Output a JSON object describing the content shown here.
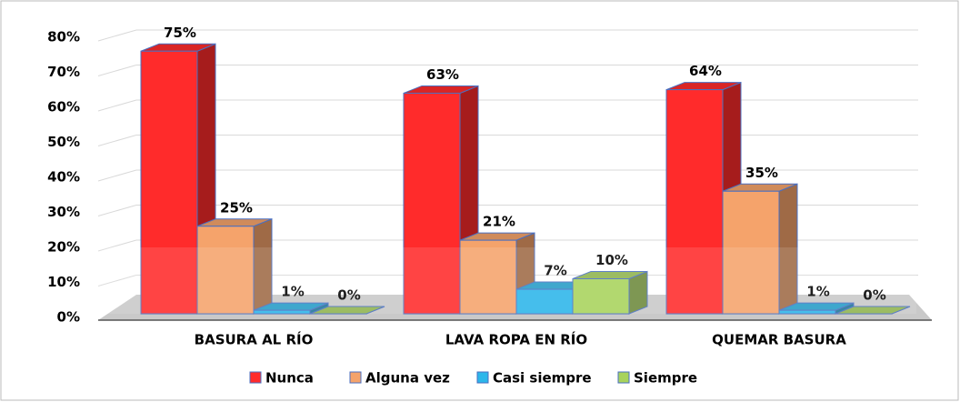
{
  "chart_data": {
    "type": "bar3d",
    "categories": [
      "BASURA AL RÍO",
      "LAVA ROPA EN RÍO",
      "QUEMAR BASURA"
    ],
    "series": [
      {
        "name": "Nunca",
        "color": "#ff2b2b",
        "values": [
          75,
          63,
          64
        ],
        "value_labels": [
          "75%",
          "63%",
          "64%"
        ]
      },
      {
        "name": "Alguna vez",
        "color": "#f5a36b",
        "values": [
          25,
          21,
          35
        ],
        "value_labels": [
          "25%",
          "21%",
          "35%"
        ]
      },
      {
        "name": "Casi siempre",
        "color": "#2cb6ea",
        "values": [
          1,
          7,
          1
        ],
        "value_labels": [
          "1%",
          "7%",
          "1%"
        ]
      },
      {
        "name": "Siempre",
        "color": "#a8d35c",
        "values": [
          0,
          10,
          0
        ],
        "value_labels": [
          "0%",
          "10%",
          "0%"
        ]
      }
    ],
    "ylim": [
      0,
      80
    ],
    "yticks": [
      {
        "value": 0,
        "label": "0%"
      },
      {
        "value": 10,
        "label": "10%"
      },
      {
        "value": 20,
        "label": "20%"
      },
      {
        "value": 30,
        "label": "30%"
      },
      {
        "value": 40,
        "label": "40%"
      },
      {
        "value": 50,
        "label": "50%"
      },
      {
        "value": 60,
        "label": "60%"
      },
      {
        "value": 70,
        "label": "70%"
      },
      {
        "value": 80,
        "label": "80%"
      }
    ],
    "grid": true,
    "legend": "bottom"
  }
}
